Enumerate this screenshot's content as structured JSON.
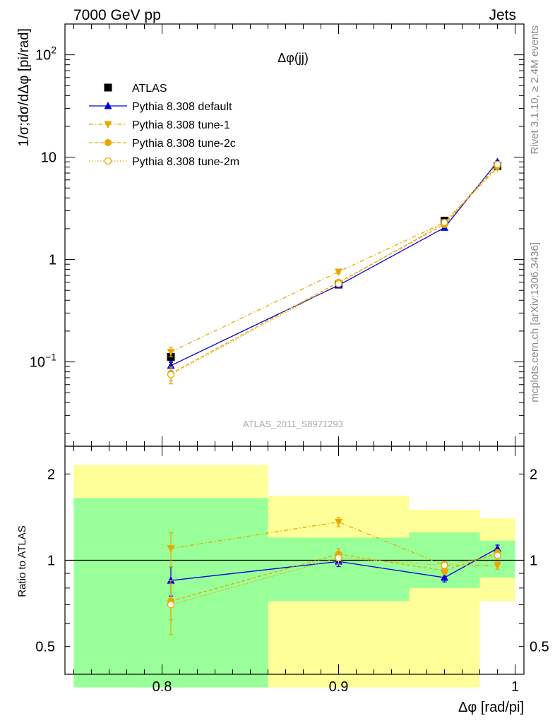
{
  "header": {
    "left": "7000 GeV pp",
    "right": "Jets"
  },
  "side_labels": {
    "rivet": "Rivet 3.1.10, ≥ 2.4M events",
    "mcplots": "mcplots.cern.ch [arXiv:1306.3436]"
  },
  "analysis_id": "ATLAS_2011_S8971293",
  "colors": {
    "data": "#000000",
    "default": "#0000dd",
    "tunes": "#e8a800",
    "band_inner": "#99ff99",
    "band_outer": "#ffff99"
  },
  "chart_data": [
    {
      "type": "line",
      "title": "Δφ(jj)",
      "xlabel": "",
      "ylabel": "1/σ;dσ/dΔφ [pi/rad]",
      "yscale": "log",
      "ylim": [
        0.015,
        200
      ],
      "xlim": [
        0.745,
        1.005
      ],
      "ytick_labels": [
        {
          "value": 100,
          "base": "10",
          "exp": "2"
        },
        {
          "value": 10,
          "base": "10",
          "exp": ""
        },
        {
          "value": 1,
          "base": "1",
          "exp": ""
        },
        {
          "value": 0.1,
          "base": "10",
          "exp": "−1"
        }
      ],
      "legend_position": "top-left",
      "series": [
        {
          "name": "ATLAS",
          "marker": "square",
          "style": "points",
          "x": [
            0.805,
            0.9,
            0.96,
            0.99
          ],
          "y": [
            0.112,
            0.57,
            2.4,
            8.2
          ],
          "yerr": [
            0.013,
            0.02,
            0.05,
            0.15
          ]
        },
        {
          "name": "Pythia 8.308 default",
          "marker": "triangle-up",
          "style": "solid",
          "x": [
            0.805,
            0.9,
            0.96,
            0.99
          ],
          "y": [
            0.092,
            0.56,
            2.05,
            9.0
          ],
          "yerr": [
            0.01,
            0.02,
            0.04,
            0.2
          ]
        },
        {
          "name": "Pythia 8.308 tune-1",
          "marker": "triangle-down",
          "style": "dashdot",
          "x": [
            0.805,
            0.9,
            0.96,
            0.99
          ],
          "y": [
            0.125,
            0.76,
            2.3,
            7.9
          ],
          "yerr": [
            0.013,
            0.03,
            0.05,
            0.2
          ]
        },
        {
          "name": "Pythia 8.308 tune-2c",
          "marker": "circle",
          "style": "dashed",
          "x": [
            0.805,
            0.9,
            0.96,
            0.99
          ],
          "y": [
            0.077,
            0.6,
            2.2,
            8.3
          ],
          "yerr": [
            0.012,
            0.03,
            0.05,
            0.2
          ]
        },
        {
          "name": "Pythia 8.308 tune-2m",
          "marker": "circle-open",
          "style": "dotted",
          "x": [
            0.805,
            0.9,
            0.96,
            0.99
          ],
          "y": [
            0.075,
            0.58,
            2.3,
            8.5
          ],
          "yerr": [
            0.014,
            0.03,
            0.05,
            0.2
          ]
        }
      ]
    },
    {
      "type": "line",
      "title": "",
      "xlabel": "Δφ [rad/pi]",
      "ylabel": "Ratio to ATLAS",
      "yscale": "log",
      "ylim": [
        0.4,
        2.5
      ],
      "xlim": [
        0.745,
        1.005
      ],
      "xticks": [
        0.8,
        0.9,
        1.0
      ],
      "xtick_labels": [
        "0.8",
        "0.9",
        "1"
      ],
      "yticks": [
        0.5,
        1,
        2
      ],
      "ytick_labels": [
        "0.5",
        "1",
        "2"
      ],
      "bands": [
        {
          "x_low": 0.75,
          "x_high": 0.86,
          "inner": [
            0.36,
            1.65
          ],
          "outer": [
            0.36,
            2.15
          ]
        },
        {
          "x_low": 0.86,
          "x_high": 0.94,
          "inner": [
            0.72,
            1.2
          ],
          "outer": [
            0.36,
            1.68
          ]
        },
        {
          "x_low": 0.94,
          "x_high": 0.98,
          "inner": [
            0.8,
            1.25
          ],
          "outer": [
            0.36,
            1.5
          ]
        },
        {
          "x_low": 0.98,
          "x_high": 1.0,
          "inner": [
            0.87,
            1.17
          ],
          "outer": [
            0.72,
            1.4
          ]
        }
      ],
      "reference_line": 1,
      "series": [
        {
          "name": "Pythia 8.308 default",
          "x": [
            0.805,
            0.9,
            0.96,
            0.99
          ],
          "y": [
            0.85,
            0.99,
            0.87,
            1.1
          ],
          "yerr": [
            0.1,
            0.04,
            0.03,
            0.03
          ]
        },
        {
          "name": "Pythia 8.308 tune-1",
          "x": [
            0.805,
            0.9,
            0.96,
            0.99
          ],
          "y": [
            1.1,
            1.36,
            0.96,
            0.96
          ],
          "yerr": [
            0.15,
            0.05,
            0.03,
            0.03
          ]
        },
        {
          "name": "Pythia 8.308 tune-2c",
          "x": [
            0.805,
            0.9,
            0.96,
            0.99
          ],
          "y": [
            0.72,
            1.05,
            0.92,
            1.06
          ],
          "yerr": [
            0.1,
            0.05,
            0.03,
            0.03
          ]
        },
        {
          "name": "Pythia 8.308 tune-2m",
          "x": [
            0.805,
            0.9,
            0.96,
            0.99
          ],
          "y": [
            0.7,
            1.02,
            0.96,
            1.04
          ],
          "yerr": [
            0.15,
            0.05,
            0.03,
            0.03
          ]
        }
      ]
    }
  ]
}
